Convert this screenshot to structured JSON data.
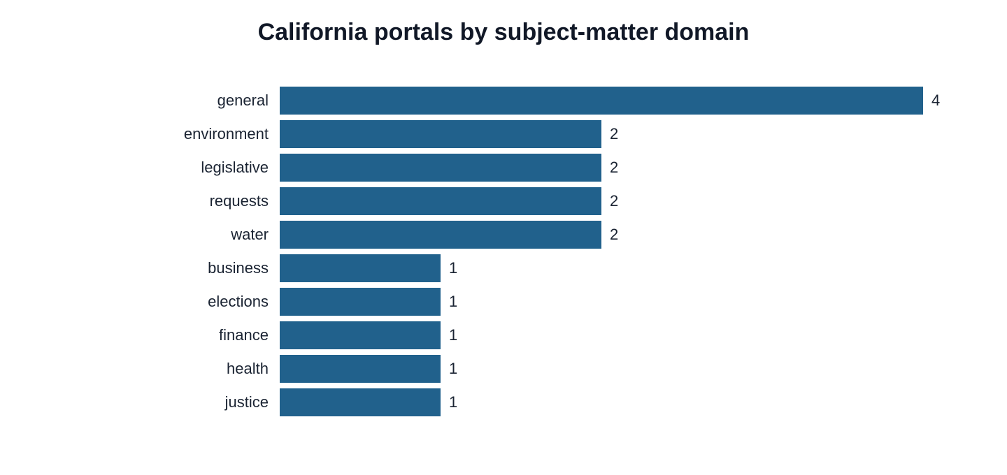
{
  "chart_data": {
    "type": "bar",
    "orientation": "horizontal",
    "title": "California portals by subject-matter domain",
    "categories": [
      "general",
      "environment",
      "legislative",
      "requests",
      "water",
      "business",
      "elections",
      "finance",
      "health",
      "justice"
    ],
    "values": [
      4,
      2,
      2,
      2,
      2,
      1,
      1,
      1,
      1,
      1
    ],
    "color": "#21618c"
  }
}
